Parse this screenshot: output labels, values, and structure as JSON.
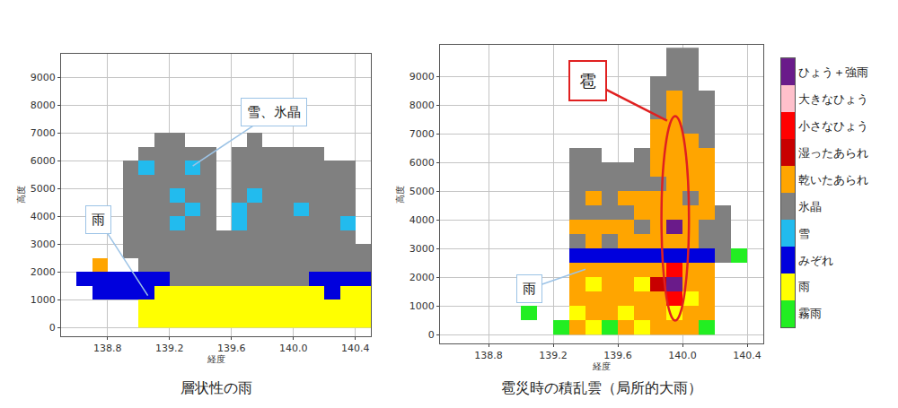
{
  "chart_data": [
    {
      "type": "heatmap",
      "subtitle": "層状性の雨",
      "x_label": "経度",
      "y_label": "高度",
      "xlim": [
        138.5,
        140.5
      ],
      "ylim": [
        -300,
        9850
      ],
      "xticks": [
        138.8,
        139.2,
        139.6,
        {
          "value": 140,
          "label": "140.0"
        },
        140.4
      ],
      "yticks": [
        0,
        1000,
        2000,
        3000,
        4000,
        5000,
        6000,
        7000,
        8000,
        9000
      ],
      "grid": true,
      "x": [
        138.55,
        138.65,
        138.75,
        138.85,
        138.95,
        139.05,
        139.15,
        139.25,
        139.35,
        139.45,
        139.55,
        139.65,
        139.75,
        139.85,
        139.95,
        140.05,
        140.15,
        140.25,
        140.35,
        140.45
      ],
      "y": [
        250,
        750,
        1250,
        1750,
        2250,
        2750,
        3250,
        3750,
        4250,
        4750,
        5250,
        5750,
        6250,
        6750,
        7250,
        7750,
        8250,
        8750,
        9250,
        9750
      ],
      "cells": [
        [
          null,
          null,
          null,
          null,
          null,
          8,
          8,
          8,
          8,
          8,
          8,
          8,
          8,
          8,
          8,
          8,
          8,
          8,
          8,
          8
        ],
        [
          null,
          null,
          null,
          null,
          null,
          8,
          8,
          8,
          8,
          8,
          8,
          8,
          8,
          8,
          8,
          8,
          8,
          8,
          8,
          8
        ],
        [
          null,
          null,
          7,
          7,
          7,
          7,
          8,
          8,
          8,
          8,
          8,
          8,
          8,
          8,
          8,
          8,
          8,
          7,
          8,
          8
        ],
        [
          null,
          7,
          7,
          7,
          7,
          7,
          7,
          5,
          5,
          5,
          5,
          5,
          5,
          5,
          5,
          5,
          7,
          7,
          7,
          7
        ],
        [
          null,
          null,
          4,
          null,
          null,
          5,
          5,
          5,
          5,
          5,
          5,
          5,
          5,
          5,
          5,
          5,
          5,
          5,
          5,
          5
        ],
        [
          null,
          null,
          null,
          null,
          5,
          5,
          5,
          5,
          5,
          5,
          5,
          5,
          5,
          5,
          5,
          5,
          5,
          5,
          5,
          5
        ],
        [
          null,
          null,
          null,
          null,
          5,
          5,
          5,
          5,
          5,
          5,
          5,
          5,
          5,
          5,
          5,
          5,
          5,
          5,
          5,
          null
        ],
        [
          null,
          null,
          null,
          null,
          5,
          5,
          5,
          6,
          5,
          5,
          null,
          6,
          5,
          5,
          5,
          5,
          5,
          5,
          6,
          null
        ],
        [
          null,
          null,
          null,
          null,
          5,
          5,
          5,
          5,
          6,
          5,
          null,
          6,
          5,
          5,
          5,
          6,
          5,
          5,
          5,
          null
        ],
        [
          null,
          null,
          null,
          null,
          5,
          5,
          5,
          6,
          5,
          5,
          null,
          5,
          6,
          5,
          5,
          5,
          5,
          5,
          5,
          null
        ],
        [
          null,
          null,
          null,
          null,
          5,
          5,
          5,
          5,
          5,
          5,
          null,
          5,
          5,
          5,
          5,
          5,
          5,
          5,
          5,
          null
        ],
        [
          null,
          null,
          null,
          null,
          5,
          6,
          5,
          5,
          6,
          5,
          null,
          5,
          5,
          5,
          5,
          5,
          5,
          5,
          5,
          null
        ],
        [
          null,
          null,
          null,
          null,
          null,
          5,
          5,
          5,
          5,
          5,
          null,
          5,
          5,
          5,
          5,
          5,
          5,
          null,
          null,
          null
        ],
        [
          null,
          null,
          null,
          null,
          null,
          null,
          5,
          5,
          null,
          null,
          null,
          null,
          5,
          null,
          null,
          null,
          null,
          null,
          null,
          null
        ],
        [
          null,
          null,
          null,
          null,
          null,
          null,
          null,
          null,
          null,
          null,
          null,
          null,
          null,
          null,
          null,
          null,
          null,
          null,
          null,
          null
        ],
        [
          null,
          null,
          null,
          null,
          null,
          null,
          null,
          null,
          null,
          null,
          null,
          null,
          null,
          null,
          null,
          null,
          null,
          null,
          null,
          null
        ],
        [
          null,
          null,
          null,
          null,
          null,
          null,
          null,
          null,
          null,
          null,
          null,
          null,
          null,
          null,
          null,
          null,
          null,
          null,
          null,
          null
        ],
        [
          null,
          null,
          null,
          null,
          null,
          null,
          null,
          null,
          null,
          null,
          null,
          null,
          null,
          null,
          null,
          null,
          null,
          null,
          null,
          null
        ],
        [
          null,
          null,
          null,
          null,
          null,
          null,
          null,
          null,
          null,
          null,
          null,
          null,
          null,
          null,
          null,
          null,
          null,
          null,
          null,
          null
        ],
        [
          null,
          null,
          null,
          null,
          null,
          null,
          null,
          null,
          null,
          null,
          null,
          null,
          null,
          null,
          null,
          null,
          null,
          null,
          null,
          null
        ]
      ],
      "annotations": [
        {
          "text": "雪、氷晶",
          "color": "#9cc3e6"
        },
        {
          "text": "雨",
          "color": "#9cc3e6"
        }
      ]
    },
    {
      "type": "heatmap",
      "subtitle": "雹災時の積乱雲（局所的大雨）",
      "x_label": "経度",
      "y_label": "高度",
      "xlim": [
        138.5,
        140.5
      ],
      "ylim": [
        -300,
        10100
      ],
      "xticks": [
        138.8,
        139.2,
        139.6,
        {
          "value": 140,
          "label": "140.0"
        },
        140.4
      ],
      "yticks": [
        0,
        1000,
        2000,
        3000,
        4000,
        5000,
        6000,
        7000,
        8000,
        9000
      ],
      "grid": true,
      "x": [
        138.55,
        138.65,
        138.75,
        138.85,
        138.95,
        139.05,
        139.15,
        139.25,
        139.35,
        139.45,
        139.55,
        139.65,
        139.75,
        139.85,
        139.95,
        140.05,
        140.15,
        140.25,
        140.35,
        140.45
      ],
      "y": [
        250,
        750,
        1250,
        1750,
        2250,
        2750,
        3250,
        3750,
        4250,
        4750,
        5250,
        5750,
        6250,
        6750,
        7250,
        7750,
        8250,
        8750,
        9250,
        9750
      ],
      "cells": [
        [
          null,
          null,
          null,
          null,
          null,
          null,
          null,
          9,
          4,
          8,
          9,
          4,
          8,
          4,
          4,
          4,
          9,
          null,
          null,
          null
        ],
        [
          null,
          null,
          null,
          null,
          null,
          9,
          null,
          null,
          8,
          4,
          4,
          8,
          4,
          4,
          8,
          4,
          4,
          null,
          null,
          null
        ],
        [
          null,
          null,
          null,
          null,
          null,
          null,
          null,
          null,
          4,
          4,
          4,
          4,
          4,
          4,
          2,
          8,
          4,
          null,
          null,
          null
        ],
        [
          null,
          null,
          null,
          null,
          null,
          null,
          null,
          null,
          4,
          8,
          4,
          4,
          8,
          3,
          0,
          4,
          4,
          null,
          null,
          null
        ],
        [
          null,
          null,
          null,
          null,
          null,
          null,
          null,
          null,
          4,
          4,
          4,
          4,
          4,
          4,
          2,
          4,
          4,
          null,
          null,
          null
        ],
        [
          null,
          null,
          null,
          null,
          null,
          null,
          null,
          null,
          7,
          7,
          7,
          7,
          7,
          7,
          7,
          7,
          7,
          5,
          9,
          null
        ],
        [
          null,
          null,
          null,
          null,
          null,
          null,
          null,
          null,
          5,
          4,
          5,
          4,
          4,
          4,
          4,
          4,
          5,
          5,
          null,
          null
        ],
        [
          null,
          null,
          null,
          null,
          null,
          null,
          null,
          null,
          4,
          4,
          4,
          4,
          5,
          4,
          0,
          4,
          5,
          5,
          null,
          null
        ],
        [
          null,
          null,
          null,
          null,
          null,
          null,
          null,
          null,
          5,
          5,
          5,
          5,
          4,
          4,
          4,
          4,
          4,
          5,
          null,
          null
        ],
        [
          null,
          null,
          null,
          null,
          null,
          null,
          null,
          null,
          5,
          4,
          5,
          4,
          4,
          4,
          4,
          5,
          4,
          null,
          null,
          null
        ],
        [
          null,
          null,
          null,
          null,
          null,
          null,
          null,
          null,
          5,
          5,
          5,
          5,
          5,
          5,
          4,
          4,
          4,
          null,
          null,
          null
        ],
        [
          null,
          null,
          null,
          null,
          null,
          null,
          null,
          null,
          5,
          5,
          5,
          5,
          5,
          4,
          4,
          4,
          4,
          null,
          null,
          null
        ],
        [
          null,
          null,
          null,
          null,
          null,
          null,
          null,
          null,
          5,
          5,
          null,
          null,
          5,
          4,
          4,
          4,
          4,
          null,
          null,
          null
        ],
        [
          null,
          null,
          null,
          null,
          null,
          null,
          null,
          null,
          null,
          null,
          null,
          null,
          null,
          4,
          4,
          4,
          5,
          null,
          null,
          null
        ],
        [
          null,
          null,
          null,
          null,
          null,
          null,
          null,
          null,
          null,
          null,
          null,
          null,
          null,
          4,
          4,
          5,
          5,
          null,
          null,
          null
        ],
        [
          null,
          null,
          null,
          null,
          null,
          null,
          null,
          null,
          null,
          null,
          null,
          null,
          null,
          5,
          4,
          5,
          5,
          null,
          null,
          null
        ],
        [
          null,
          null,
          null,
          null,
          null,
          null,
          null,
          null,
          null,
          null,
          null,
          null,
          null,
          5,
          4,
          5,
          5,
          null,
          null,
          null
        ],
        [
          null,
          null,
          null,
          null,
          null,
          null,
          null,
          null,
          null,
          null,
          null,
          null,
          null,
          5,
          5,
          5,
          null,
          null,
          null,
          null
        ],
        [
          null,
          null,
          null,
          null,
          null,
          null,
          null,
          null,
          null,
          null,
          null,
          null,
          null,
          null,
          5,
          5,
          null,
          null,
          null,
          null
        ],
        [
          null,
          null,
          null,
          null,
          null,
          null,
          null,
          null,
          null,
          null,
          null,
          null,
          null,
          null,
          5,
          5,
          null,
          null,
          null,
          null
        ]
      ],
      "annotations": [
        {
          "text": "雹",
          "color": "#e02020"
        },
        {
          "text": "雨",
          "color": "#9cc3e6"
        }
      ]
    }
  ],
  "colorbar": {
    "classes": [
      {
        "name": "ひょう＋強雨",
        "color": "#6a1b8a"
      },
      {
        "name": "大きなひょう",
        "color": "#ffc0cb"
      },
      {
        "name": "小さなひょう",
        "color": "#ff0000"
      },
      {
        "name": "湿ったあられ",
        "color": "#c80000"
      },
      {
        "name": "乾いたあられ",
        "color": "#ffa500"
      },
      {
        "name": "氷晶",
        "color": "#808080"
      },
      {
        "name": "雪",
        "color": "#22bbee"
      },
      {
        "name": "みぞれ",
        "color": "#0000dd"
      },
      {
        "name": "雨",
        "color": "#ffff00"
      },
      {
        "name": "霧雨",
        "color": "#22ee22"
      }
    ]
  }
}
